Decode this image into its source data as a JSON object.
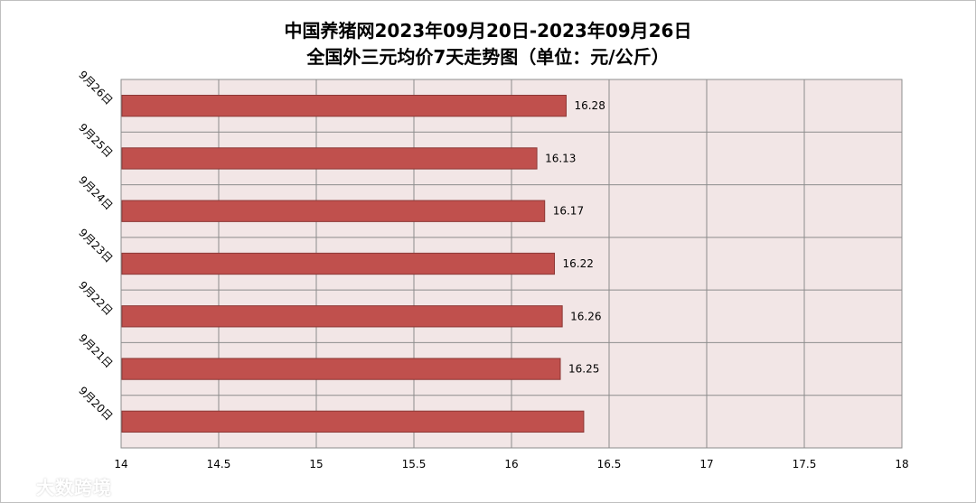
{
  "chart_data": {
    "type": "bar",
    "orientation": "horizontal",
    "title": "中国养猪网2023年09月20日-2023年09月26日",
    "subtitle": "全国外三元均价7天走势图（单位：元/公斤）",
    "categories": [
      "9月26日",
      "9月25日",
      "9月24日",
      "9月23日",
      "9月22日",
      "9月21日",
      "9月20日"
    ],
    "values": [
      16.28,
      16.13,
      16.17,
      16.22,
      16.26,
      16.25,
      16.37
    ],
    "data_labels": [
      "16.28",
      "16.13",
      "16.17",
      "16.22",
      "16.26",
      "16.25",
      ""
    ],
    "xlim": [
      14,
      18
    ],
    "x_ticks": [
      "14",
      "14.5",
      "15",
      "15.5",
      "16",
      "16.5",
      "17",
      "17.5",
      "18"
    ],
    "grid": true,
    "legend": "none",
    "colors": {
      "bar": "#c0504d",
      "bar_edge": "#8c3836",
      "plot_background": "#f2e6e6",
      "grid": "#8c8c8c"
    }
  },
  "watermark": "大数跨境"
}
